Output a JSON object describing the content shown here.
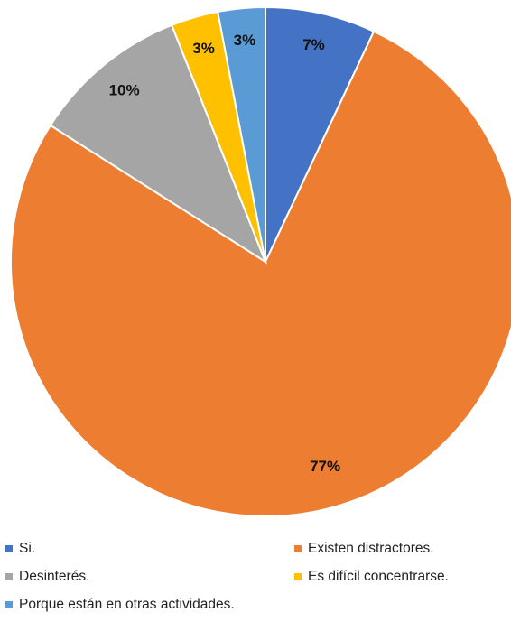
{
  "chart_data": {
    "type": "pie",
    "categories": [
      "Si.",
      "Existen distractores.",
      "Desinterés.",
      "Es difícil concentrarse.",
      "Porque están en otras actividades."
    ],
    "values": [
      7,
      77,
      10,
      3,
      3
    ],
    "labels": [
      "7%",
      "77%",
      "10%",
      "3%",
      "3%"
    ],
    "colors": [
      "#4472C4",
      "#ED7D31",
      "#A5A5A5",
      "#FFC000",
      "#5B9BD5"
    ],
    "start_angle_deg": 0,
    "direction": "clockwise",
    "legend_position": "bottom"
  }
}
